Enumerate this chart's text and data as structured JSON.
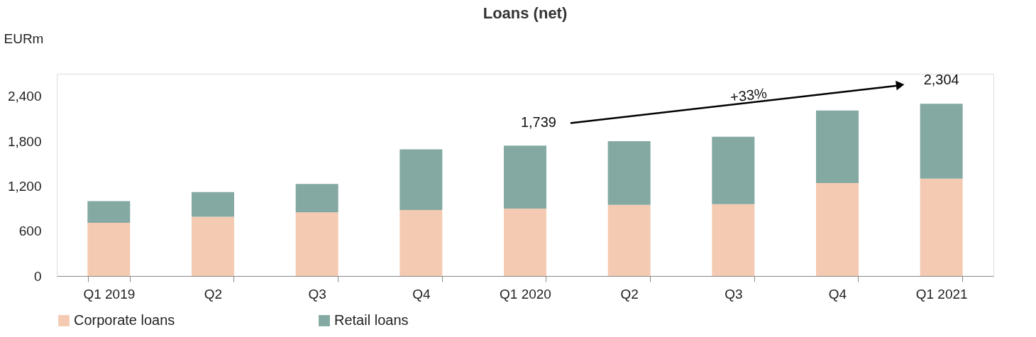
{
  "chart_data": {
    "type": "bar",
    "title": "Loans (net)",
    "ylabel": "EURm",
    "stacked": true,
    "categories": [
      "Q1 2019",
      "Q2",
      "Q3",
      "Q4",
      "Q1 2020",
      "Q2",
      "Q3",
      "Q4",
      "Q1 2021"
    ],
    "series": [
      {
        "name": "Corporate loans",
        "color": "#f4cbb2",
        "values": [
          710,
          790,
          850,
          880,
          900,
          950,
          960,
          1240,
          1300
        ]
      },
      {
        "name": "Retail loans",
        "color": "#84a8a2",
        "values": [
          290,
          330,
          380,
          810,
          840,
          850,
          900,
          970,
          1000
        ]
      }
    ],
    "ylim": [
      0,
      2700
    ],
    "yticks": [
      0,
      600,
      {
        "value": 1200,
        "label": "1,200"
      },
      {
        "value": 1800,
        "label": "1,800"
      },
      {
        "value": 2400,
        "label": "2,400"
      }
    ],
    "grid": false,
    "legend": "bottom",
    "annotations": [
      {
        "text": "1,739",
        "x": "Q1 2020",
        "y": 1739
      },
      {
        "text": "2,304",
        "x": "Q1 2021",
        "y": 2304
      },
      "+33%"
    ]
  }
}
